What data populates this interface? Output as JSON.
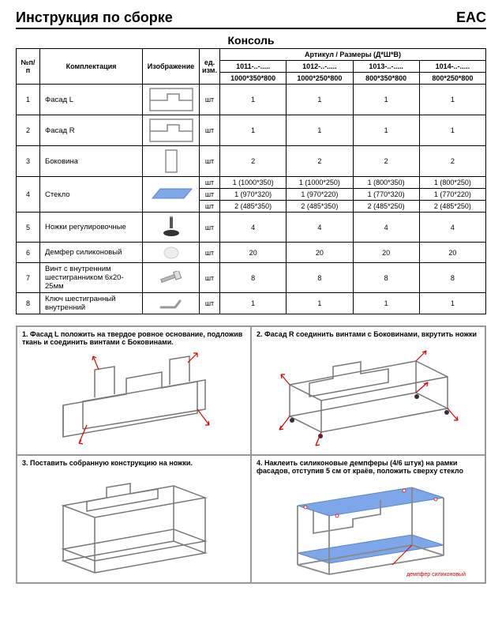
{
  "header": {
    "title": "Инструкция по сборке",
    "mark": "EAC"
  },
  "subtitle": "Консоль",
  "table": {
    "col_num": "№п/п",
    "col_name": "Комплектация",
    "col_img": "Изображение",
    "col_unit": "ед. изм.",
    "col_art_header": "Артикул / Размеры (Д*Ш*В)",
    "variants": [
      "1011-..-.....",
      "1012-..-.....",
      "1013-..-.....",
      "1014-..-....."
    ],
    "sizes": [
      "1000*350*800",
      "1000*250*800",
      "800*350*800",
      "800*250*800"
    ],
    "unit_pc": "шт",
    "rows": [
      {
        "n": "1",
        "name": "Фасад L",
        "img": "facade-l",
        "qty": [
          "1",
          "1",
          "1",
          "1"
        ]
      },
      {
        "n": "2",
        "name": "Фасад R",
        "img": "facade-r",
        "qty": [
          "1",
          "1",
          "1",
          "1"
        ]
      },
      {
        "n": "3",
        "name": "Боковина",
        "img": "side",
        "qty": [
          "2",
          "2",
          "2",
          "2"
        ]
      }
    ],
    "glass": {
      "n": "4",
      "name": "Стекло",
      "img": "glass",
      "lines": [
        [
          "1 (1000*350)",
          "1 (1000*250)",
          "1 (800*350)",
          "1 (800*250)"
        ],
        [
          "1 (970*320)",
          "1 (970*220)",
          "1 (770*320)",
          "1 (770*220)"
        ],
        [
          "2 (485*350)",
          "2 (485*350)",
          "2 (485*250)",
          "2 (485*250)"
        ]
      ]
    },
    "rows2": [
      {
        "n": "5",
        "name": "Ножки регулировочные",
        "img": "foot",
        "qty": [
          "4",
          "4",
          "4",
          "4"
        ]
      },
      {
        "n": "6",
        "name": "Демфер силиконовый",
        "img": "damper",
        "qty": [
          "20",
          "20",
          "20",
          "20"
        ]
      },
      {
        "n": "7",
        "name": "Винт с внутренним шестигранником 6х20-25мм",
        "img": "bolt",
        "qty": [
          "8",
          "8",
          "8",
          "8"
        ]
      },
      {
        "n": "8",
        "name": "Ключ шестигранный внутренний",
        "img": "hexkey",
        "qty": [
          "1",
          "1",
          "1",
          "1"
        ]
      }
    ]
  },
  "steps": {
    "s1": "1. Фасад L положить на твердое ровное основание, подложив  ткань и соединить винтами с Боковинами.",
    "s2": "2. Фасад R соединить винтами с Боковинами, вкрутить ножки",
    "s3": "3. Поставить собранную конструкцию на ножки.",
    "s4": "4. Наклеить силиконовые демпферы (4/6 штук) на рамки фасадов, отступив 5 см от краёв, положить сверху стекло",
    "damper_label": "демпфер силиконовый"
  },
  "colors": {
    "glass": "#7da7e8",
    "frame": "#666",
    "frame_light": "#bbb",
    "red": "#d00"
  }
}
